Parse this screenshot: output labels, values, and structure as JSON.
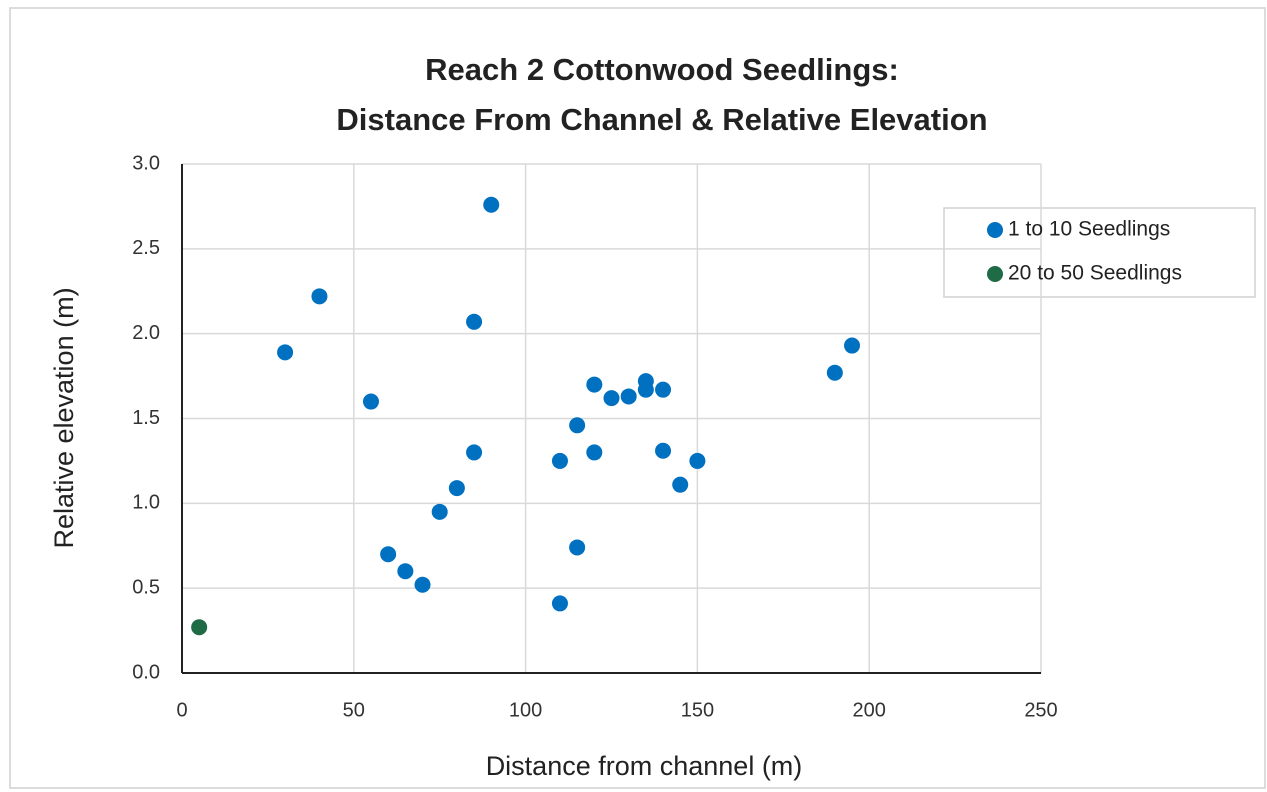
{
  "chart_data": {
    "type": "scatter",
    "title": [
      "Reach 2 Cottonwood Seedlings:",
      "Distance From Channel & Relative Elevation"
    ],
    "xlabel": "Distance from channel (m)",
    "ylabel": "Relative elevation (m)",
    "xlim": [
      0,
      250
    ],
    "xticks": [
      0,
      50,
      100,
      150,
      200,
      250
    ],
    "ylim": [
      0,
      3
    ],
    "yticks": [
      {
        "value": 0,
        "label": "0.0"
      },
      {
        "value": 0.5,
        "label": "0.5"
      },
      {
        "value": 1,
        "label": "1.0"
      },
      {
        "value": 1.5,
        "label": "1.5"
      },
      {
        "value": 2,
        "label": "2.0"
      },
      {
        "value": 2.5,
        "label": "2.5"
      },
      {
        "value": 3,
        "label": "3.0"
      }
    ],
    "grid": true,
    "legend": "right",
    "series": [
      {
        "name": "1 to 10 Seedlings",
        "color": "#0070c0",
        "x": [
          30,
          40,
          55,
          60,
          65,
          70,
          75,
          80,
          85,
          85,
          90,
          110,
          110,
          115,
          115,
          120,
          120,
          125,
          130,
          135,
          135,
          140,
          140,
          145,
          150,
          190,
          195
        ],
        "values": [
          1.89,
          2.22,
          1.6,
          0.7,
          0.6,
          0.52,
          0.95,
          1.09,
          1.3,
          2.07,
          2.76,
          1.25,
          0.41,
          1.46,
          0.74,
          1.3,
          1.7,
          1.62,
          1.63,
          1.72,
          1.67,
          1.67,
          1.31,
          1.11,
          1.25,
          1.77,
          1.93
        ]
      },
      {
        "name": "20 to 50 Seedlings",
        "color": "#1e6b46",
        "x": [
          5
        ],
        "values": [
          0.27
        ]
      }
    ]
  }
}
